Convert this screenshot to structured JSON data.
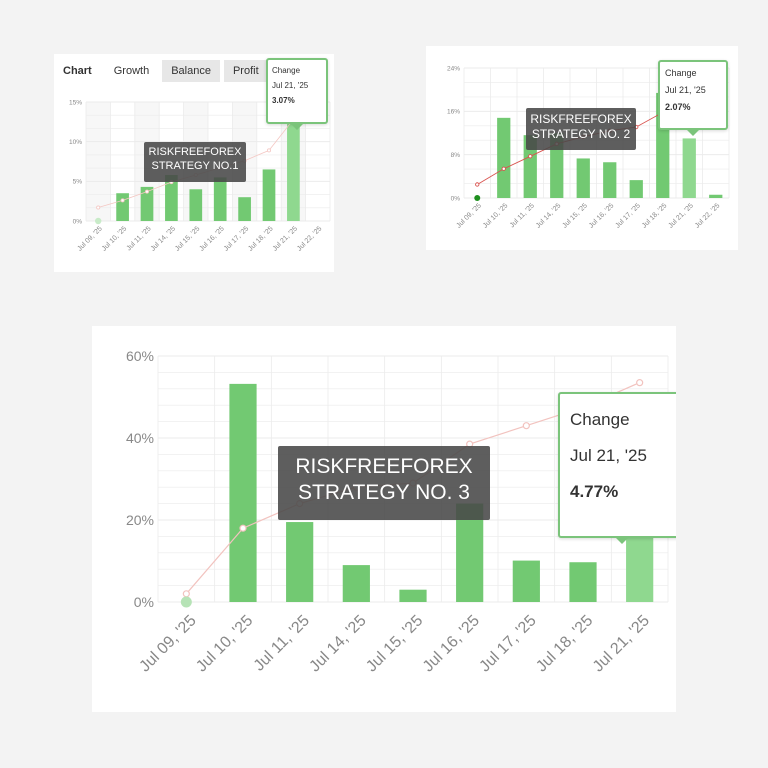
{
  "colors": {
    "bar": "#72c972",
    "bar_highlight": "#8fd88f",
    "line_chart1": "#f4c7c3",
    "line_chart2": "#d9534f",
    "line_chart3": "#f2c3bf",
    "grid": "#ebebeb",
    "axis_text": "#888888",
    "marker_green": "#2e9e2e"
  },
  "panel1": {
    "tabs": [
      {
        "label": "Chart"
      },
      {
        "label": "Growth"
      },
      {
        "label": "Balance"
      },
      {
        "label": "Profit"
      }
    ],
    "dropdown_caret": "⌄",
    "settings_icon": "sliders-icon",
    "tooltip": {
      "title": "Change",
      "date": "Jul 21, '25",
      "value": "3.07%"
    },
    "badge": {
      "line1": "RISKFREEFOREX",
      "line2": "STRATEGY NO.1"
    }
  },
  "panel2": {
    "tooltip": {
      "title": "Change",
      "date": "Jul 21, '25",
      "value": "2.07%"
    },
    "badge": {
      "line1": "RISKFREEFOREX",
      "line2": "STRATEGY NO. 2"
    }
  },
  "panel3": {
    "tooltip": {
      "title": "Change",
      "date": "Jul 21, '25",
      "value": "4.77%"
    },
    "badge": {
      "line1": "RISKFREEFOREX",
      "line2": "STRATEGY NO. 3"
    }
  },
  "chart_data": [
    {
      "type": "bar",
      "categories": [
        "Jul 09, '25",
        "Jul 10, '25",
        "Jul 11, '25",
        "Jul 14, '25",
        "Jul 15, '25",
        "Jul 16, '25",
        "Jul 17, '25",
        "Jul 18, '25",
        "Jul 21, '25",
        "Jul 22, '25"
      ],
      "series": [
        {
          "type": "bar",
          "values": [
            0,
            3.5,
            4.3,
            5.8,
            4.0,
            5.5,
            3.0,
            6.5,
            13.0,
            0
          ]
        },
        {
          "type": "line",
          "values": [
            1.7,
            2.6,
            3.7,
            4.9,
            5.8,
            6.7,
            7.6,
            8.9,
            12.8,
            null
          ]
        }
      ],
      "yticks": [
        "0%",
        "5%",
        "10%",
        "15%"
      ],
      "ylim": [
        0,
        15
      ],
      "highlight_index": 8,
      "grid": true
    },
    {
      "type": "bar",
      "categories": [
        "Jul 09, '25",
        "Jul 10, '25",
        "Jul 11, '25",
        "Jul 14, '25",
        "Jul 15, '25",
        "Jul 16, '25",
        "Jul 17, '25",
        "Jul 18, '25",
        "Jul 21, '25",
        "Jul 22, '25"
      ],
      "series": [
        {
          "type": "bar",
          "values": [
            0,
            14.8,
            11.6,
            12.0,
            7.3,
            6.6,
            3.3,
            19.4,
            11.0,
            0.6
          ]
        },
        {
          "type": "line",
          "values": [
            2.5,
            5.4,
            7.7,
            10.0,
            11.3,
            12.4,
            13.1,
            15.8,
            18.2,
            null
          ]
        }
      ],
      "yticks": [
        "0%",
        "8%",
        "16%",
        "24%"
      ],
      "ylim": [
        0,
        24
      ],
      "highlight_index": 8,
      "grid": true
    },
    {
      "type": "bar",
      "categories": [
        "Jul 09, '25",
        "Jul 10, '25",
        "Jul 11, '25",
        "Jul 14, '25",
        "Jul 15, '25",
        "Jul 16, '25",
        "Jul 17, '25",
        "Jul 18, '25",
        "Jul 21, '25"
      ],
      "series": [
        {
          "type": "bar",
          "values": [
            0,
            53.2,
            19.5,
            9.0,
            3.0,
            24.0,
            10.1,
            9.7,
            16.0
          ]
        },
        {
          "type": "line",
          "values": [
            2.0,
            18.0,
            24.0,
            28.0,
            29.0,
            38.5,
            43.0,
            47.5,
            53.5
          ]
        }
      ],
      "yticks": [
        "0%",
        "20%",
        "40%",
        "60%"
      ],
      "ylim": [
        0,
        60
      ],
      "highlight_index": 8,
      "grid": true
    }
  ]
}
